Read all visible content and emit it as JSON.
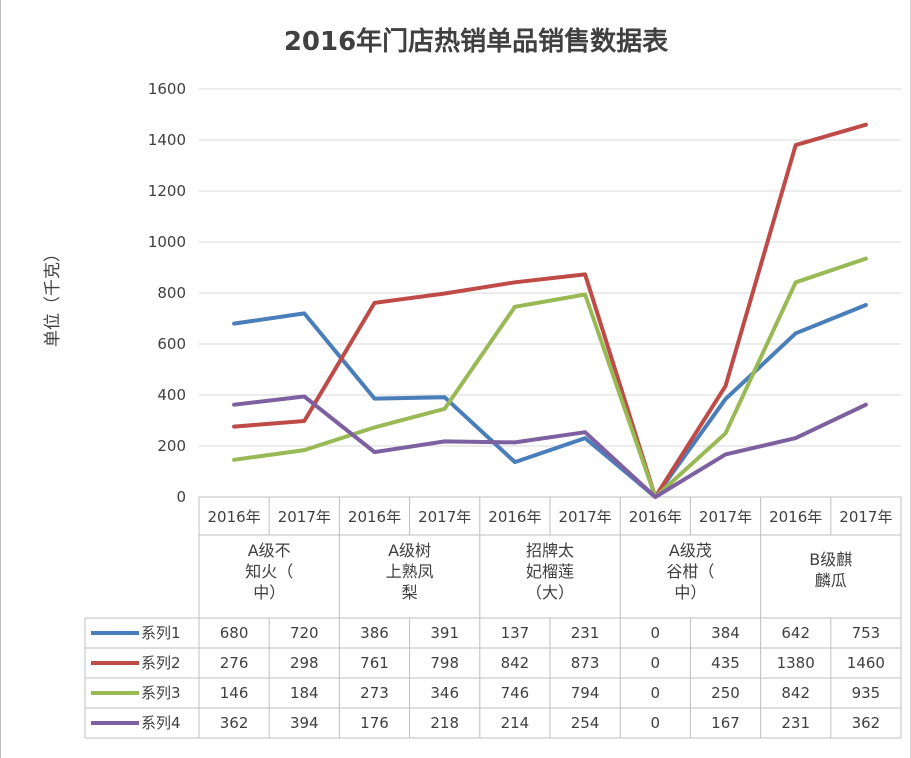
{
  "chart_data": {
    "type": "line",
    "title": "2016年门店热销单品销售数据表",
    "ylabel": "单位（千克）",
    "xlabel": "",
    "ylim": [
      0,
      1600
    ],
    "yticks": [
      "0",
      "200",
      "400",
      "600",
      "800",
      "1000",
      "1200",
      "1400",
      "1600"
    ],
    "grid": true,
    "legend": "data table",
    "categories": [
      {
        "label": "A级不知火（中）",
        "lines": [
          "A级不",
          "知火（",
          "中）"
        ]
      },
      {
        "label": "A级树上熟凤梨",
        "lines": [
          "A级树",
          "上熟凤",
          "梨"
        ]
      },
      {
        "label": "招牌太妃榴莲（大）",
        "lines": [
          "招牌太",
          "妃榴莲",
          "（大）"
        ]
      },
      {
        "label": "A级茂谷柑（中）",
        "lines": [
          "A级茂",
          "谷柑（",
          "中）"
        ]
      },
      {
        "label": "B级麒麟瓜",
        "lines": [
          "B级麒",
          "麟瓜"
        ]
      }
    ],
    "x": [
      "2016年",
      "2017年",
      "2016年",
      "2017年",
      "2016年",
      "2017年",
      "2016年",
      "2017年",
      "2016年",
      "2017年"
    ],
    "series": [
      {
        "name": "系列1",
        "color": "#4a7ebb",
        "values": [
          680,
          720,
          386,
          391,
          137,
          231,
          0,
          384,
          642,
          753
        ]
      },
      {
        "name": "系列2",
        "color": "#be4b48",
        "values": [
          276,
          298,
          761,
          798,
          842,
          873,
          0,
          435,
          1380,
          1460
        ]
      },
      {
        "name": "系列3",
        "color": "#98b954",
        "values": [
          146,
          184,
          273,
          346,
          746,
          794,
          0,
          250,
          842,
          935
        ]
      },
      {
        "name": "系列4",
        "color": "#7d60a0",
        "values": [
          362,
          394,
          176,
          218,
          214,
          254,
          0,
          167,
          231,
          362
        ]
      }
    ]
  }
}
